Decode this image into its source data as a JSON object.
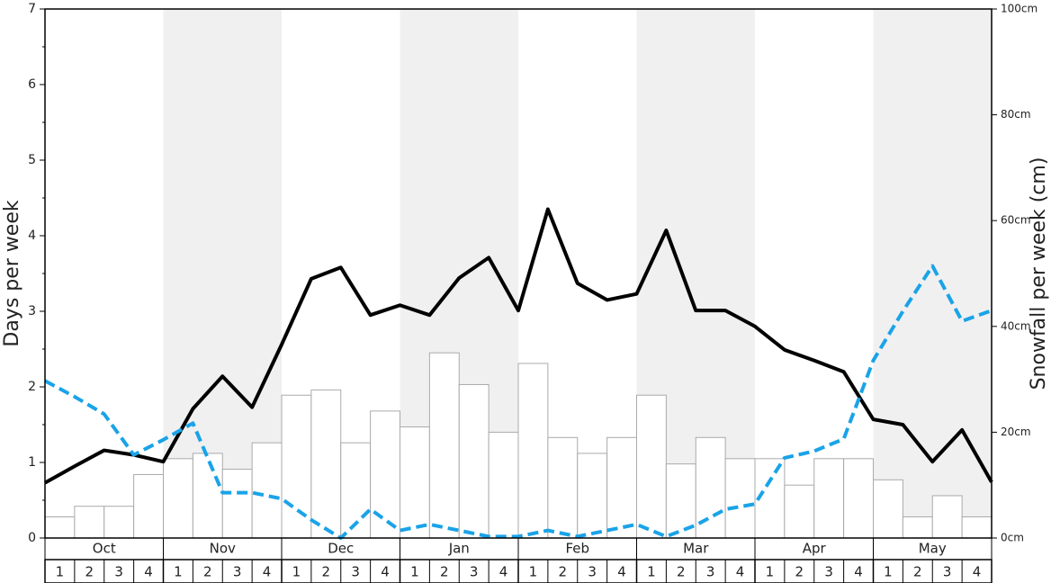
{
  "chart_data": {
    "type": "bar-line",
    "y_label": "Days per week",
    "y2_label": "Snowfall per week (cm)",
    "months": [
      "Oct",
      "Nov",
      "Dec",
      "Jan",
      "Feb",
      "Mar",
      "Apr",
      "May"
    ],
    "week_labels": [
      "1",
      "2",
      "3",
      "4",
      "1",
      "2",
      "3",
      "4",
      "1",
      "2",
      "3",
      "4",
      "1",
      "2",
      "3",
      "4",
      "1",
      "2",
      "3",
      "4",
      "1",
      "2",
      "3",
      "4",
      "1",
      "2",
      "3",
      "4",
      "1",
      "2",
      "3",
      "4"
    ],
    "xlim": [
      0,
      32
    ],
    "ylim": [
      0,
      7
    ],
    "yticks": [
      0,
      1,
      2,
      3,
      4,
      5,
      6,
      7
    ],
    "y2lim": [
      0,
      100
    ],
    "y2ticks": [
      {
        "value": 0,
        "label": "0cm"
      },
      {
        "value": 20,
        "label": "20cm"
      },
      {
        "value": 40,
        "label": "40cm"
      },
      {
        "value": 60,
        "label": "60cm"
      },
      {
        "value": 80,
        "label": "80cm"
      },
      {
        "value": 100,
        "label": "100cm"
      }
    ],
    "bars": {
      "axis": "y2",
      "color": "#ffffff",
      "values": [
        4,
        6,
        6,
        12,
        15,
        16,
        13,
        18,
        27,
        28,
        18,
        24,
        21,
        35,
        29,
        20,
        33,
        19,
        16,
        19,
        27,
        14,
        19,
        15,
        15,
        10,
        15,
        15,
        11,
        4,
        8,
        4
      ]
    },
    "lines": [
      {
        "color": "#000000",
        "dashed": false,
        "values": [
          0.73,
          0.95,
          1.16,
          1.1,
          1.01,
          1.71,
          2.14,
          1.73,
          2.56,
          3.43,
          3.58,
          2.95,
          3.08,
          2.95,
          3.44,
          3.71,
          3.01,
          4.35,
          3.37,
          3.15,
          3.23,
          4.07,
          3.01,
          3.01,
          2.8,
          2.49,
          2.35,
          2.2,
          1.57,
          1.5,
          1.01,
          1.43,
          0.74
        ]
      },
      {
        "color": "#1aa3e8",
        "dashed": true,
        "values": [
          2.08,
          1.87,
          1.64,
          1.1,
          1.3,
          1.52,
          0.6,
          0.6,
          0.52,
          0.24,
          0,
          0.38,
          0.1,
          0.18,
          0.1,
          0.02,
          0.02,
          0.1,
          0.02,
          0.1,
          0.18,
          0.02,
          0.17,
          0.38,
          0.45,
          1.06,
          1.15,
          1.31,
          2.35,
          3.0,
          3.6,
          2.87,
          3.01
        ]
      }
    ]
  }
}
